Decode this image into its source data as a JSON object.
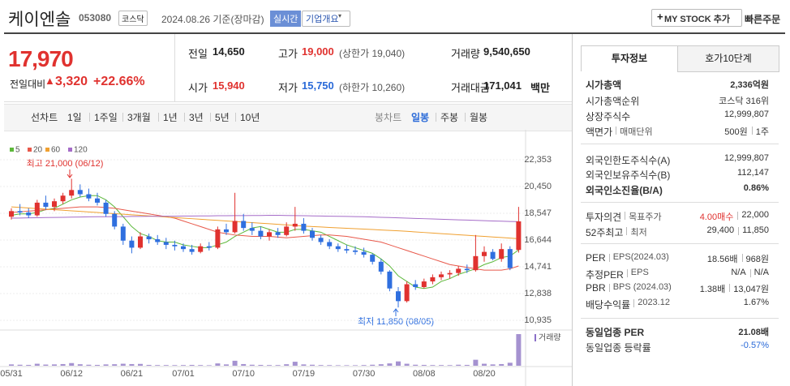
{
  "header": {
    "name": "케이엔솔",
    "code": "053080",
    "market": "코스닥",
    "date": "2024.08.26 기준(장마감)",
    "realtime": "실시간",
    "company": "기업개요",
    "mystock": "MY STOCK 추가",
    "order": "빠른주문"
  },
  "quote": {
    "price": "17,970",
    "change_label": "전일대비",
    "change": "3,320",
    "rate": "+22.66%",
    "cells": [
      {
        "label": "전일",
        "value": "14,650"
      },
      {
        "label": "고가",
        "value": "19,000",
        "note": "(상한가 19,040)"
      },
      {
        "label": "거래량",
        "value": "9,540,650"
      },
      {
        "label": "시가",
        "value": "15,940"
      },
      {
        "label": "저가",
        "value": "15,750",
        "note": "(하한가 10,260)"
      },
      {
        "label": "거래대금",
        "value": "171,041",
        "unit": "백만"
      }
    ]
  },
  "tabs": {
    "line": {
      "label": "선차트",
      "items": [
        "1일",
        "1주일",
        "3개월",
        "1년",
        "3년",
        "5년",
        "10년"
      ]
    },
    "candle": {
      "label": "봉차트",
      "items": [
        "일봉",
        "주봉",
        "월봉"
      ]
    }
  },
  "side": {
    "tabs": [
      "투자정보",
      "호가10단계"
    ],
    "groups": [
      {
        "rows": [
          {
            "label": [
              "시가총액"
            ],
            "value": [
              "2,336억원"
            ]
          },
          {
            "label": [
              "시가총액순위"
            ],
            "value": [
              "코스닥 316위"
            ]
          },
          {
            "label": [
              "상장주식수"
            ],
            "value": [
              "12,999,807"
            ]
          },
          {
            "label": [
              "액면가",
              "매매단위"
            ],
            "value": [
              "500원",
              "1주"
            ]
          }
        ]
      },
      {
        "rows": [
          {
            "label": [
              "외국인한도주식수(A)"
            ],
            "value": [
              "12,999,807"
            ]
          },
          {
            "label": [
              "외국인보유주식수(B)"
            ],
            "value": [
              "112,147"
            ]
          },
          {
            "label": [
              "외국인소진율(B/A)"
            ],
            "value": [
              "0.86%"
            ]
          }
        ]
      },
      {
        "rows": [
          {
            "label": [
              "투자의견",
              "목표주가"
            ],
            "value": [
              "4.00매수",
              "22,000"
            ]
          },
          {
            "label": [
              "52주최고",
              "최저"
            ],
            "value": [
              "29,400",
              "11,850"
            ]
          }
        ]
      },
      {
        "rows": [
          {
            "label": [
              "PER",
              "EPS(2024.03)"
            ],
            "value": [
              "18.56배",
              "968원"
            ]
          },
          {
            "label": [
              "추정PER",
              "EPS"
            ],
            "value": [
              "N/A",
              "N/A"
            ]
          },
          {
            "label": [
              "PBR",
              "BPS (2024.03)"
            ],
            "value": [
              "1.38배",
              "13,047원"
            ]
          },
          {
            "label": [
              "배당수익률",
              "2023.12"
            ],
            "value": [
              "1.67%"
            ]
          }
        ]
      },
      {
        "rows": [
          {
            "label": [
              "동일업종 PER"
            ],
            "value": [
              "21.08배"
            ]
          },
          {
            "label": [
              "동일업종 등락률"
            ],
            "value": [
              "-0.57%"
            ]
          }
        ]
      }
    ]
  },
  "chart_data": {
    "type": "candlestick",
    "categories": [
      "05/31",
      null,
      null,
      null,
      null,
      null,
      null,
      "06/12",
      null,
      null,
      null,
      null,
      null,
      null,
      "06/21",
      null,
      null,
      null,
      null,
      null,
      "07/01",
      null,
      null,
      null,
      null,
      null,
      null,
      "07/10",
      null,
      null,
      null,
      null,
      null,
      null,
      "07/19",
      null,
      null,
      null,
      null,
      null,
      null,
      "07/30",
      null,
      null,
      null,
      null,
      null,
      null,
      "08/08",
      null,
      null,
      null,
      null,
      null,
      null,
      "08/20",
      null,
      null,
      null,
      null
    ],
    "open": [
      18300,
      18700,
      18600,
      18400,
      19300,
      19000,
      19400,
      19800,
      20200,
      19900,
      19600,
      19300,
      18500,
      17600,
      16600,
      16100,
      16900,
      16700,
      16500,
      16300,
      16200,
      16000,
      15800,
      16200,
      16100,
      17400,
      17200,
      18000,
      17500,
      17300,
      16900,
      17200,
      17000,
      17600,
      17800,
      17300,
      16800,
      16500,
      16200,
      16000,
      15900,
      15800,
      15600,
      15100,
      14400,
      13000,
      12300,
      13500,
      13300,
      13700,
      14000,
      14200,
      14300,
      14600,
      14500,
      15500,
      15800,
      15300,
      16000,
      15940
    ],
    "high": [
      18900,
      19200,
      18900,
      19500,
      19800,
      19600,
      20000,
      21000,
      20600,
      20300,
      20000,
      19500,
      18700,
      17800,
      16900,
      17200,
      17100,
      17000,
      16800,
      16600,
      16400,
      16300,
      16400,
      16500,
      17600,
      17800,
      20000,
      18500,
      17900,
      17600,
      17400,
      17500,
      17900,
      19000,
      18200,
      17500,
      17000,
      16700,
      16400,
      16300,
      16200,
      16100,
      15700,
      15300,
      14500,
      13300,
      13700,
      13800,
      13900,
      14200,
      14400,
      14500,
      14800,
      14900,
      17000,
      16200,
      16000,
      16400,
      16200,
      19000
    ],
    "low": [
      18100,
      18400,
      18200,
      18300,
      18800,
      18700,
      19200,
      19600,
      19700,
      19400,
      19100,
      18300,
      17400,
      16300,
      15700,
      16000,
      16400,
      16300,
      16000,
      15900,
      15800,
      15600,
      15700,
      15900,
      16000,
      17000,
      17100,
      17300,
      17000,
      16700,
      16600,
      16800,
      16900,
      17300,
      17100,
      16600,
      16300,
      16000,
      15800,
      15700,
      15600,
      15400,
      14900,
      14200,
      13000,
      11850,
      12200,
      13100,
      13200,
      13500,
      13800,
      13900,
      14100,
      14300,
      14400,
      15100,
      15200,
      15100,
      14500,
      15750
    ],
    "close": [
      18700,
      18600,
      18400,
      19300,
      19000,
      19400,
      19800,
      20200,
      19900,
      19600,
      19300,
      18500,
      17600,
      16600,
      16100,
      16900,
      16700,
      16500,
      16300,
      16200,
      16000,
      15800,
      16200,
      16100,
      17400,
      17200,
      18000,
      17500,
      17300,
      16900,
      17200,
      17000,
      17600,
      17800,
      17300,
      16800,
      16500,
      16200,
      16000,
      15900,
      15800,
      15600,
      15100,
      14400,
      13200,
      12300,
      13500,
      13300,
      13700,
      14000,
      14200,
      14300,
      14600,
      14500,
      15500,
      15800,
      15300,
      16000,
      14650,
      17970
    ],
    "volume": [
      400000,
      300000,
      250000,
      600000,
      350000,
      400000,
      500000,
      800000,
      450000,
      300000,
      250000,
      400000,
      450000,
      600000,
      500000,
      550000,
      250000,
      200000,
      200000,
      180000,
      200000,
      250000,
      200000,
      150000,
      700000,
      400000,
      1500000,
      500000,
      300000,
      250000,
      200000,
      200000,
      450000,
      1200000,
      400000,
      300000,
      200000,
      180000,
      150000,
      150000,
      150000,
      200000,
      300000,
      450000,
      700000,
      1300000,
      600000,
      300000,
      250000,
      200000,
      200000,
      180000,
      300000,
      250000,
      1800000,
      600000,
      400000,
      500000,
      900000,
      9540650
    ],
    "up_color": "#e0322f",
    "down_color": "#2f6fdf",
    "volume_color": "#a592d0",
    "volume_label": "거래량",
    "ma": [
      {
        "name": "5",
        "color": "#5cb83a",
        "values": [
          18400,
          18500,
          18500,
          18600,
          18800,
          18900,
          19200,
          19500,
          19700,
          19800,
          19800,
          19500,
          19000,
          18300,
          17600,
          17100,
          16900,
          16600,
          16500,
          16500,
          16300,
          16200,
          16100,
          16100,
          16300,
          16500,
          16900,
          17200,
          17500,
          17600,
          17400,
          17200,
          17200,
          17400,
          17400,
          17300,
          17200,
          16900,
          16600,
          16300,
          16100,
          15900,
          15700,
          15300,
          14800,
          14100,
          13700,
          13300,
          13200,
          13300,
          13700,
          13900,
          14200,
          14400,
          14600,
          14900,
          15100,
          15400,
          15500,
          15944
        ]
      },
      {
        "name": "20",
        "color": "#e8584a",
        "values": [
          18600,
          18650,
          18700,
          18750,
          18800,
          18850,
          18900,
          18950,
          19000,
          19000,
          19000,
          18950,
          18900,
          18800,
          18700,
          18600,
          18500,
          18400,
          18300,
          18200,
          18000,
          17800,
          17600,
          17400,
          17200,
          17100,
          17000,
          16950,
          16900,
          16900,
          16900,
          16850,
          16800,
          16850,
          16900,
          16950,
          17000,
          17000,
          16950,
          16900,
          16800,
          16700,
          16600,
          16500,
          16300,
          16100,
          15900,
          15700,
          15500,
          15300,
          15100,
          14900,
          14800,
          14700,
          14600,
          14500,
          14500,
          14500,
          14600,
          14800
        ]
      },
      {
        "name": "60",
        "color": "#f0a030",
        "values": [
          19000,
          18960,
          18920,
          18880,
          18840,
          18800,
          18760,
          18720,
          18680,
          18640,
          18600,
          18560,
          18520,
          18480,
          18440,
          18400,
          18360,
          18320,
          18280,
          18240,
          18200,
          18160,
          18120,
          18080,
          18040,
          18000,
          17960,
          17920,
          17880,
          17840,
          17800,
          17760,
          17720,
          17680,
          17640,
          17600,
          17570,
          17540,
          17510,
          17480,
          17450,
          17420,
          17390,
          17360,
          17330,
          17300,
          17260,
          17220,
          17180,
          17140,
          17100,
          17060,
          17020,
          16980,
          16940,
          16900,
          16860,
          16820,
          16780,
          16740
        ]
      },
      {
        "name": "120",
        "color": "#a56cc8",
        "values": [
          18200,
          18210,
          18220,
          18230,
          18240,
          18250,
          18260,
          18270,
          18280,
          18290,
          18300,
          18300,
          18310,
          18310,
          18320,
          18320,
          18330,
          18330,
          18340,
          18340,
          18350,
          18350,
          18360,
          18360,
          18370,
          18370,
          18380,
          18380,
          18390,
          18390,
          18400,
          18400,
          18390,
          18380,
          18370,
          18360,
          18350,
          18340,
          18330,
          18320,
          18310,
          18300,
          18280,
          18260,
          18240,
          18220,
          18200,
          18180,
          18160,
          18140,
          18120,
          18100,
          18080,
          18060,
          18040,
          18020,
          18000,
          17980,
          17960,
          17950
        ]
      }
    ],
    "ylim": [
      10360,
      23330
    ],
    "yticks": [
      {
        "value": 10935,
        "label": "10,935"
      },
      {
        "value": 12838,
        "label": "12,838"
      },
      {
        "value": 14741,
        "label": "14,741"
      },
      {
        "value": 16644,
        "label": "16,644"
      },
      {
        "value": 18547,
        "label": "18,547"
      },
      {
        "value": 20450,
        "label": "20,450"
      },
      {
        "value": 22353,
        "label": "22,353"
      }
    ],
    "annotations": [
      "최고 21,000 (06/12)",
      "최저 11,850 (08/05)"
    ],
    "grid": true
  }
}
